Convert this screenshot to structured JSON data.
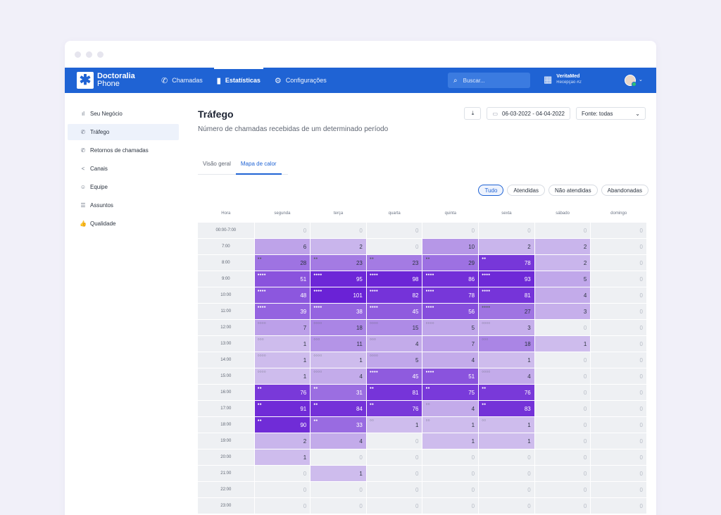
{
  "window": {
    "dots": 3
  },
  "topbar": {
    "logo_line1": "Doctoralia",
    "logo_line2": "Phone",
    "nav": [
      {
        "label": "Chamadas",
        "icon": "phone-icon"
      },
      {
        "label": "Estatísticas",
        "icon": "bar-chart-icon"
      },
      {
        "label": "Configurações",
        "icon": "gear-icon"
      }
    ],
    "search_placeholder": "Buscar...",
    "clinic_name": "VeritaMed",
    "clinic_sub": "Recepção #2"
  },
  "sidebar": {
    "items": [
      {
        "label": "Seu Negócio",
        "icon": "bar-chart-icon"
      },
      {
        "label": "Tráfego",
        "icon": "phone-traffic-icon"
      },
      {
        "label": "Retornos de chamadas",
        "icon": "phone-callback-icon"
      },
      {
        "label": "Canais",
        "icon": "share-icon"
      },
      {
        "label": "Equipe",
        "icon": "people-icon"
      },
      {
        "label": "Assuntos",
        "icon": "list-icon"
      },
      {
        "label": "Qualidade",
        "icon": "thumb-up-icon"
      }
    ],
    "active_index": 1
  },
  "main": {
    "title": "Tráfego",
    "subtitle": "Número de chamadas recebidas de um determinado período",
    "date_range": "06-03-2022 - 04-04-2022",
    "source": "Fonte: todas",
    "tabs": [
      "Visão geral",
      "Mapa de calor"
    ],
    "active_tab": 1,
    "filters": [
      "Tudo",
      "Atendidas",
      "Não atendidas",
      "Abandonadas"
    ],
    "active_filter": 0
  },
  "heatmap": {
    "hour_label": "Hora",
    "days": [
      "segunda",
      "terça",
      "quarta",
      "quinta",
      "sexta",
      "sábado",
      "domingo"
    ],
    "hours": [
      "00:00-7:00",
      "7:00",
      "8:00",
      "9:00",
      "10:00",
      "11:00",
      "12:00",
      "13:00",
      "14:00",
      "15:00",
      "16:00",
      "17:00",
      "18:00",
      "19:00",
      "20:00",
      "21:00",
      "22:00",
      "23:00"
    ],
    "values": [
      [
        0,
        0,
        0,
        0,
        0,
        0,
        0
      ],
      [
        6,
        2,
        0,
        10,
        2,
        2,
        0
      ],
      [
        28,
        23,
        23,
        29,
        78,
        2,
        0
      ],
      [
        51,
        95,
        98,
        86,
        93,
        5,
        0
      ],
      [
        48,
        101,
        82,
        78,
        81,
        4,
        0
      ],
      [
        39,
        38,
        45,
        56,
        27,
        3,
        0
      ],
      [
        7,
        18,
        15,
        5,
        3,
        0,
        0
      ],
      [
        1,
        11,
        4,
        7,
        18,
        1,
        0
      ],
      [
        1,
        1,
        5,
        4,
        1,
        0,
        0
      ],
      [
        1,
        4,
        45,
        51,
        4,
        0,
        0
      ],
      [
        76,
        31,
        81,
        75,
        76,
        0,
        0
      ],
      [
        91,
        84,
        76,
        4,
        83,
        0,
        0
      ],
      [
        90,
        33,
        1,
        1,
        1,
        0,
        0
      ],
      [
        2,
        4,
        0,
        1,
        1,
        0,
        0
      ],
      [
        1,
        0,
        0,
        0,
        0,
        0,
        0
      ],
      [
        0,
        1,
        0,
        0,
        0,
        0,
        0
      ],
      [
        0,
        0,
        0,
        0,
        0,
        0,
        0
      ],
      [
        0,
        0,
        0,
        0,
        0,
        0,
        0
      ]
    ],
    "indicators": [
      [
        "",
        "",
        "",
        "",
        "",
        "",
        ""
      ],
      [
        "",
        "",
        "",
        "",
        "",
        "",
        ""
      ],
      [
        "●●",
        "●●",
        "●●",
        "●●",
        "●●",
        "",
        ""
      ],
      [
        "●●●●",
        "●●●●",
        "●●●●",
        "●●●●",
        "●●●●",
        "",
        ""
      ],
      [
        "●●●●",
        "●●●●",
        "●●●●",
        "●●●●",
        "●●●●",
        "",
        ""
      ],
      [
        "●●●●",
        "●●●●",
        "●●●●",
        "●●●●",
        "●●●●",
        "",
        ""
      ],
      [
        "○○○○",
        "○○○○",
        "○○○○",
        "○○○○",
        "○○○○",
        "",
        ""
      ],
      [
        "○○○",
        "○○○",
        "○○○",
        "",
        "○○○",
        "",
        ""
      ],
      [
        "○○○○",
        "○○○○",
        "○○○○",
        "",
        "",
        "",
        ""
      ],
      [
        "○○○○",
        "○○○○",
        "●●●●",
        "●●●●",
        "○○○○",
        "",
        ""
      ],
      [
        "●●",
        "●●",
        "●●",
        "●●",
        "●●",
        "",
        ""
      ],
      [
        "●●",
        "●●",
        "●●",
        "○○",
        "●●",
        "",
        ""
      ],
      [
        "●●",
        "●●",
        "○○",
        "○○",
        "○○",
        "",
        ""
      ],
      [
        "",
        "",
        "",
        "",
        "",
        "",
        ""
      ],
      [
        "",
        "",
        "",
        "",
        "",
        "",
        ""
      ],
      [
        "",
        "",
        "",
        "",
        "",
        "",
        ""
      ],
      [
        "",
        "",
        "",
        "",
        "",
        "",
        ""
      ],
      [
        "",
        "",
        "",
        "",
        "",
        "",
        ""
      ]
    ],
    "colors": {
      "zero": "#f1f2f5",
      "max": "#6a22d6"
    }
  }
}
